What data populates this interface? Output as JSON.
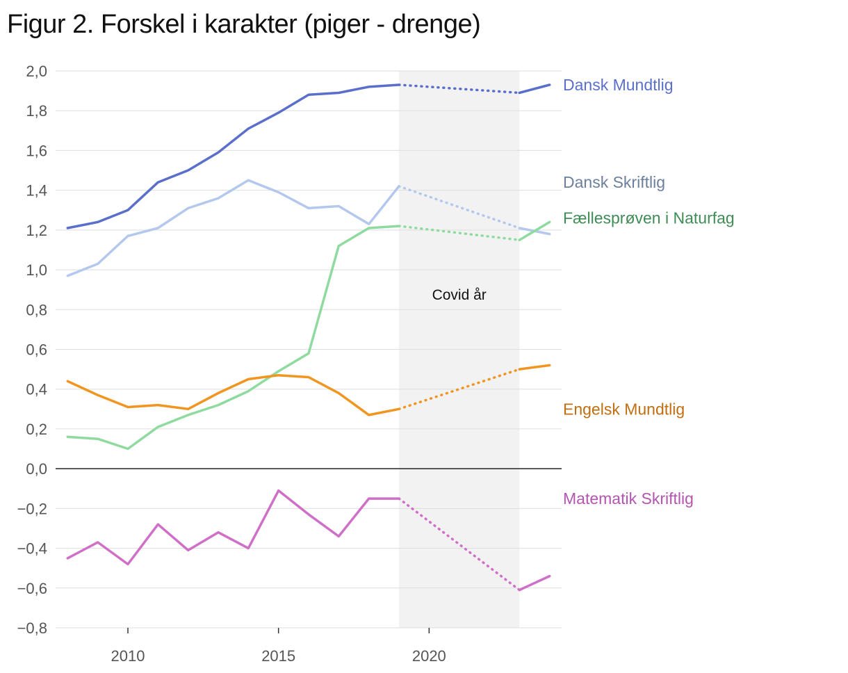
{
  "chart_data": {
    "type": "line",
    "title": "Figur 2. Forskel i karakter (piger - drenge)",
    "xlabel": "",
    "ylabel": "",
    "xlim": [
      2007.6,
      2024.4
    ],
    "ylim": [
      -0.8,
      2.0
    ],
    "x_ticks": [
      2010,
      2015,
      2020
    ],
    "y_ticks": [
      -0.8,
      -0.6,
      -0.4,
      -0.2,
      0.0,
      0.2,
      0.4,
      0.6,
      0.8,
      1.0,
      1.2,
      1.4,
      1.6,
      1.8,
      2.0
    ],
    "y_tick_labels": [
      "−0,8",
      "−0,6",
      "−0,4",
      "−0,2",
      "0,0",
      "0,2",
      "0,4",
      "0,6",
      "0,8",
      "1,0",
      "1,2",
      "1,4",
      "1,6",
      "1,8",
      "2,0"
    ],
    "covid_period": [
      2019,
      2023
    ],
    "annotation": "Covid år",
    "series": [
      {
        "name": "Dansk Mundtlig",
        "color": "#5a6fcc",
        "label_color": "#5a6fcc",
        "x": [
          2008,
          2009,
          2010,
          2011,
          2012,
          2013,
          2014,
          2015,
          2016,
          2017,
          2018,
          2019,
          2023,
          2024
        ],
        "values": [
          1.21,
          1.24,
          1.3,
          1.44,
          1.5,
          1.59,
          1.71,
          1.79,
          1.88,
          1.89,
          1.92,
          1.93,
          1.89,
          1.93
        ]
      },
      {
        "name": "Dansk Skriftlig",
        "color": "#b4c8ee",
        "label_color": "#6b7f9e",
        "x": [
          2008,
          2009,
          2010,
          2011,
          2012,
          2013,
          2014,
          2015,
          2016,
          2017,
          2018,
          2019,
          2023,
          2024
        ],
        "values": [
          0.97,
          1.03,
          1.17,
          1.21,
          1.31,
          1.36,
          1.45,
          1.39,
          1.31,
          1.32,
          1.23,
          1.42,
          1.21,
          1.18
        ]
      },
      {
        "name": "Fællesprøven i Naturfag",
        "color": "#8fdb9f",
        "label_color": "#3f8c55",
        "x": [
          2008,
          2009,
          2010,
          2011,
          2012,
          2013,
          2014,
          2015,
          2016,
          2017,
          2018,
          2019,
          2023,
          2024
        ],
        "values": [
          0.16,
          0.15,
          0.1,
          0.21,
          0.27,
          0.32,
          0.39,
          0.49,
          0.58,
          1.12,
          1.21,
          1.22,
          1.15,
          1.24
        ]
      },
      {
        "name": "Engelsk Mundtlig",
        "color": "#f0951f",
        "label_color": "#c06e10",
        "x": [
          2008,
          2009,
          2010,
          2011,
          2012,
          2013,
          2014,
          2015,
          2016,
          2017,
          2018,
          2019,
          2023,
          2024
        ],
        "values": [
          0.44,
          0.37,
          0.31,
          0.32,
          0.3,
          0.38,
          0.45,
          0.47,
          0.46,
          0.38,
          0.27,
          0.3,
          0.5,
          0.52
        ]
      },
      {
        "name": "Matematik Skriftlig",
        "color": "#cf6fc8",
        "label_color": "#b455b0",
        "x": [
          2008,
          2009,
          2010,
          2011,
          2012,
          2013,
          2014,
          2015,
          2016,
          2017,
          2018,
          2019,
          2023,
          2024
        ],
        "values": [
          -0.45,
          -0.37,
          -0.48,
          -0.28,
          -0.41,
          -0.32,
          -0.4,
          -0.11,
          -0.23,
          -0.34,
          -0.15,
          -0.15,
          -0.61,
          -0.54
        ]
      }
    ]
  }
}
